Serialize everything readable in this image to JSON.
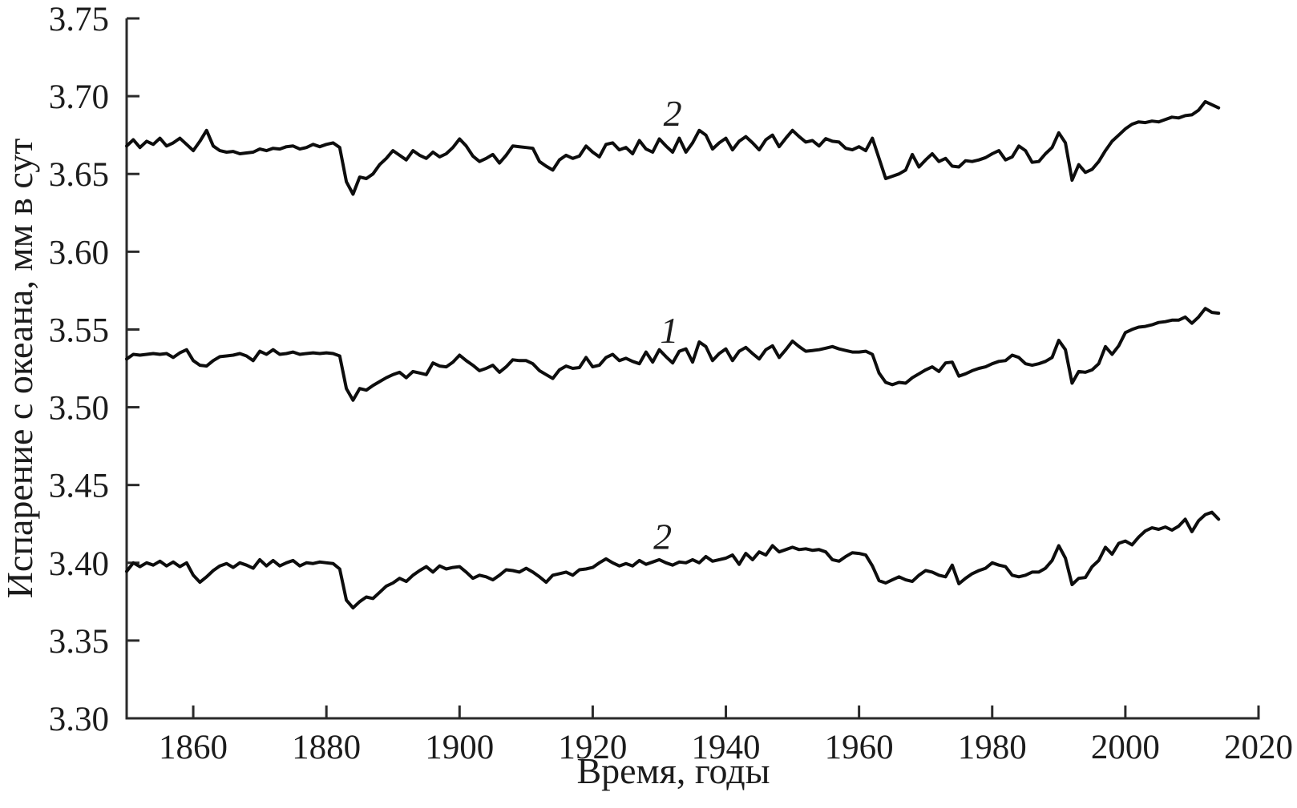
{
  "chart_data": {
    "type": "line",
    "title": "",
    "xlabel": "Время, годы",
    "ylabel": "Испарение с океана, мм в сут",
    "xlim": [
      1850,
      2020
    ],
    "ylim": [
      3.3,
      3.75
    ],
    "grid": false,
    "legend": "none",
    "line_color": "#0d0d0d",
    "axis_color": "#2a2a2a",
    "background": "#ffffff",
    "x_ticks": [
      {
        "value": 1860,
        "label": "1860"
      },
      {
        "value": 1880,
        "label": "1880"
      },
      {
        "value": 1900,
        "label": "1900"
      },
      {
        "value": 1920,
        "label": "1920"
      },
      {
        "value": 1940,
        "label": "1940"
      },
      {
        "value": 1960,
        "label": "1960"
      },
      {
        "value": 1980,
        "label": "1980"
      },
      {
        "value": 2000,
        "label": "2000"
      },
      {
        "value": 2020,
        "label": "2020"
      }
    ],
    "y_ticks": [
      {
        "value": 3.3,
        "label": "3.30"
      },
      {
        "value": 3.35,
        "label": "3.35"
      },
      {
        "value": 3.4,
        "label": "3.40"
      },
      {
        "value": 3.45,
        "label": "3.45"
      },
      {
        "value": 3.5,
        "label": "3.50"
      },
      {
        "value": 3.55,
        "label": "3.55"
      },
      {
        "value": 3.6,
        "label": "3.60"
      },
      {
        "value": 3.65,
        "label": "3.65"
      },
      {
        "value": 3.7,
        "label": "3.70"
      },
      {
        "value": 3.75,
        "label": "3.75"
      }
    ],
    "start_year": 1850,
    "year_step": 1,
    "series": [
      {
        "name": "upper-curve",
        "label": "2",
        "label_year": 1932,
        "label_value": 3.681,
        "values": [
          3.668,
          3.672,
          3.667,
          3.671,
          3.669,
          3.673,
          3.668,
          3.67,
          3.673,
          3.669,
          3.665,
          3.671,
          3.678,
          3.668,
          3.665,
          3.664,
          3.6645,
          3.663,
          3.6635,
          3.664,
          3.666,
          3.665,
          3.6665,
          3.666,
          3.6675,
          3.668,
          3.666,
          3.667,
          3.669,
          3.6675,
          3.669,
          3.67,
          3.667,
          3.645,
          3.637,
          3.648,
          3.647,
          3.65,
          3.656,
          3.66,
          3.665,
          3.662,
          3.659,
          3.665,
          3.662,
          3.66,
          3.664,
          3.661,
          3.663,
          3.667,
          3.6725,
          3.668,
          3.6615,
          3.658,
          3.66,
          3.6625,
          3.657,
          3.662,
          3.668,
          3.6675,
          3.667,
          3.6665,
          3.658,
          3.655,
          3.6525,
          3.659,
          3.662,
          3.66,
          3.6615,
          3.668,
          3.664,
          3.661,
          3.669,
          3.67,
          3.6655,
          3.667,
          3.663,
          3.6715,
          3.666,
          3.664,
          3.6725,
          3.668,
          3.664,
          3.673,
          3.664,
          3.67,
          3.678,
          3.675,
          3.666,
          3.67,
          3.673,
          3.6655,
          3.671,
          3.674,
          3.67,
          3.6655,
          3.672,
          3.675,
          3.6675,
          3.673,
          3.678,
          3.674,
          3.6705,
          3.6715,
          3.668,
          3.6727,
          3.671,
          3.6705,
          3.6665,
          3.6655,
          3.6675,
          3.665,
          3.673,
          3.66,
          3.647,
          3.6485,
          3.65,
          3.6525,
          3.6625,
          3.6545,
          3.659,
          3.663,
          3.658,
          3.66,
          3.655,
          3.6545,
          3.6585,
          3.658,
          3.659,
          3.6605,
          3.663,
          3.665,
          3.659,
          3.661,
          3.668,
          3.665,
          3.6575,
          3.658,
          3.663,
          3.667,
          3.6765,
          3.67,
          3.646,
          3.656,
          3.651,
          3.653,
          3.658,
          3.665,
          3.671,
          3.675,
          3.679,
          3.682,
          3.6835,
          3.683,
          3.684,
          3.6835,
          3.685,
          3.6865,
          3.686,
          3.6875,
          3.688,
          3.691,
          3.6965,
          3.6945,
          3.6925
        ]
      },
      {
        "name": "middle-curve",
        "label": "1",
        "label_year": 1931.5,
        "label_value": 3.5415,
        "values": [
          3.531,
          3.534,
          3.5335,
          3.534,
          3.5345,
          3.534,
          3.5345,
          3.532,
          3.535,
          3.537,
          3.53,
          3.527,
          3.5265,
          3.53,
          3.5325,
          3.533,
          3.5335,
          3.5345,
          3.533,
          3.53,
          3.536,
          3.534,
          3.537,
          3.534,
          3.5345,
          3.5355,
          3.534,
          3.5345,
          3.535,
          3.5345,
          3.535,
          3.5345,
          3.533,
          3.512,
          3.5045,
          3.512,
          3.511,
          3.514,
          3.5165,
          3.519,
          3.521,
          3.5225,
          3.519,
          3.523,
          3.522,
          3.521,
          3.5285,
          3.5265,
          3.526,
          3.529,
          3.5335,
          3.53,
          3.527,
          3.5235,
          3.525,
          3.527,
          3.5225,
          3.526,
          3.5305,
          3.53,
          3.53,
          3.528,
          3.5235,
          3.521,
          3.5185,
          3.524,
          3.5265,
          3.525,
          3.5255,
          3.532,
          3.526,
          3.527,
          3.532,
          3.534,
          3.53,
          3.5315,
          3.5295,
          3.528,
          3.5355,
          3.529,
          3.537,
          3.5325,
          3.5285,
          3.536,
          3.5375,
          3.529,
          3.542,
          3.539,
          3.53,
          3.5345,
          3.5375,
          3.53,
          3.536,
          3.5385,
          3.5345,
          3.531,
          3.537,
          3.5395,
          3.532,
          3.537,
          3.5425,
          3.539,
          3.536,
          3.5365,
          3.537,
          3.538,
          3.539,
          3.5375,
          3.5365,
          3.5355,
          3.5355,
          3.536,
          3.534,
          3.522,
          3.516,
          3.5145,
          3.516,
          3.5155,
          3.519,
          3.5215,
          3.524,
          3.526,
          3.523,
          3.5285,
          3.529,
          3.52,
          3.5215,
          3.5235,
          3.525,
          3.526,
          3.528,
          3.5295,
          3.53,
          3.5335,
          3.532,
          3.528,
          3.527,
          3.528,
          3.5295,
          3.532,
          3.543,
          3.537,
          3.5155,
          3.523,
          3.5225,
          3.524,
          3.528,
          3.539,
          3.534,
          3.5395,
          3.548,
          3.55,
          3.5515,
          3.552,
          3.553,
          3.5545,
          3.555,
          3.556,
          3.556,
          3.558,
          3.554,
          3.558,
          3.5635,
          3.561,
          3.5605
        ]
      },
      {
        "name": "lower-curve",
        "label": "2",
        "label_year": 1930.5,
        "label_value": 3.409,
        "values": [
          3.3945,
          3.4,
          3.3975,
          3.4,
          3.3985,
          3.401,
          3.398,
          3.4005,
          3.3975,
          3.4,
          3.392,
          3.3875,
          3.391,
          3.395,
          3.398,
          3.3995,
          3.397,
          3.4,
          3.3985,
          3.3965,
          3.402,
          3.398,
          3.4015,
          3.398,
          3.4,
          3.4015,
          3.398,
          3.4,
          3.3995,
          3.4005,
          3.4,
          3.3995,
          3.396,
          3.376,
          3.371,
          3.375,
          3.378,
          3.377,
          3.381,
          3.385,
          3.387,
          3.39,
          3.388,
          3.392,
          3.395,
          3.3975,
          3.394,
          3.398,
          3.396,
          3.397,
          3.3975,
          3.394,
          3.39,
          3.392,
          3.391,
          3.389,
          3.392,
          3.3955,
          3.395,
          3.394,
          3.3965,
          3.394,
          3.391,
          3.3875,
          3.392,
          3.393,
          3.394,
          3.392,
          3.3955,
          3.396,
          3.397,
          3.4,
          3.4025,
          3.4,
          3.398,
          3.3995,
          3.398,
          3.4015,
          3.399,
          3.4005,
          3.402,
          3.4,
          3.3985,
          3.4005,
          3.4,
          3.402,
          3.4,
          3.404,
          3.401,
          3.402,
          3.403,
          3.405,
          3.399,
          3.406,
          3.402,
          3.407,
          3.405,
          3.411,
          3.407,
          3.4085,
          3.41,
          3.4085,
          3.409,
          3.408,
          3.4085,
          3.407,
          3.402,
          3.401,
          3.404,
          3.4065,
          3.406,
          3.405,
          3.398,
          3.3885,
          3.387,
          3.389,
          3.391,
          3.389,
          3.388,
          3.392,
          3.395,
          3.394,
          3.392,
          3.391,
          3.3985,
          3.3865,
          3.39,
          3.393,
          3.395,
          3.3965,
          3.4,
          3.3985,
          3.3975,
          3.392,
          3.391,
          3.392,
          3.394,
          3.394,
          3.3965,
          3.4015,
          3.411,
          3.403,
          3.386,
          3.39,
          3.3905,
          3.3975,
          3.4015,
          3.41,
          3.4055,
          3.4125,
          3.414,
          3.4115,
          3.4165,
          3.4205,
          3.4225,
          3.4215,
          3.423,
          3.421,
          3.4235,
          3.428,
          3.42,
          3.427,
          3.431,
          3.4325,
          3.428
        ]
      }
    ]
  }
}
